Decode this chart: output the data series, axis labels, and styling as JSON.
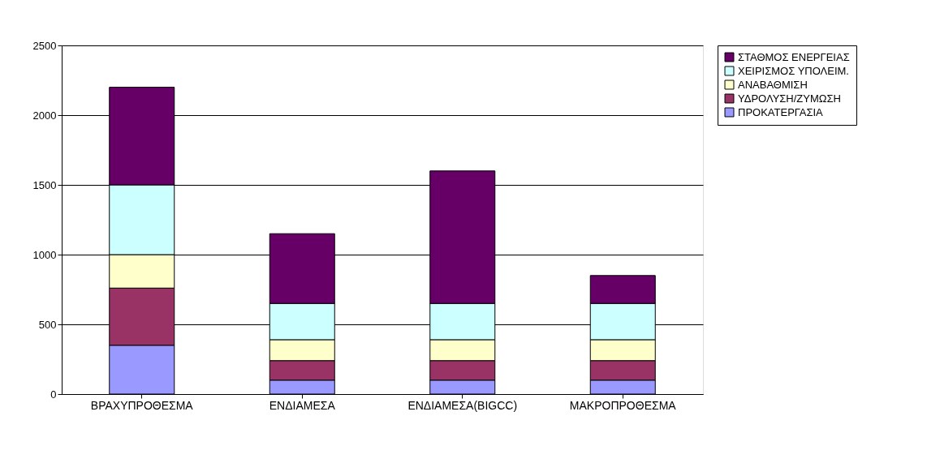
{
  "chart_data": {
    "type": "bar",
    "stacked": true,
    "categories": [
      "ΒΡΑΧΥΠΡΟΘΕΣΜΑ",
      "ΕΝΔΙΑΜΕΣΑ",
      "ΕΝΔΙΑΜΕΣΑ(BIGCC)",
      "ΜΑΚΡΟΠΡΟΘΕΣΜΑ"
    ],
    "series": [
      {
        "name": "ΠΡΟΚΑΤΕΡΓΑΣΙΑ",
        "color": "#9999ff",
        "values": [
          350,
          100,
          100,
          100
        ]
      },
      {
        "name": "ΥΔΡΟΛΥΣΗ/ΖΥΜΩΣΗ",
        "color": "#993366",
        "values": [
          410,
          140,
          140,
          140
        ]
      },
      {
        "name": "ΑΝΑΒΑΘΜΙΣΗ",
        "color": "#ffffcc",
        "values": [
          240,
          150,
          150,
          150
        ]
      },
      {
        "name": "ΧΕΙΡΙΣΜΟΣ ΥΠΟΛΕΙΜ.",
        "color": "#ccffff",
        "values": [
          500,
          260,
          260,
          260
        ]
      },
      {
        "name": "ΣΤΑΘΜΟΣ ΕΝΕΡΓΕΙΑΣ",
        "color": "#660066",
        "values": [
          700,
          500,
          950,
          200
        ]
      }
    ],
    "ylim": [
      0,
      2500
    ],
    "yticks": [
      0,
      500,
      1000,
      1500,
      2000,
      2500
    ],
    "grid": "y",
    "legend": "right"
  }
}
